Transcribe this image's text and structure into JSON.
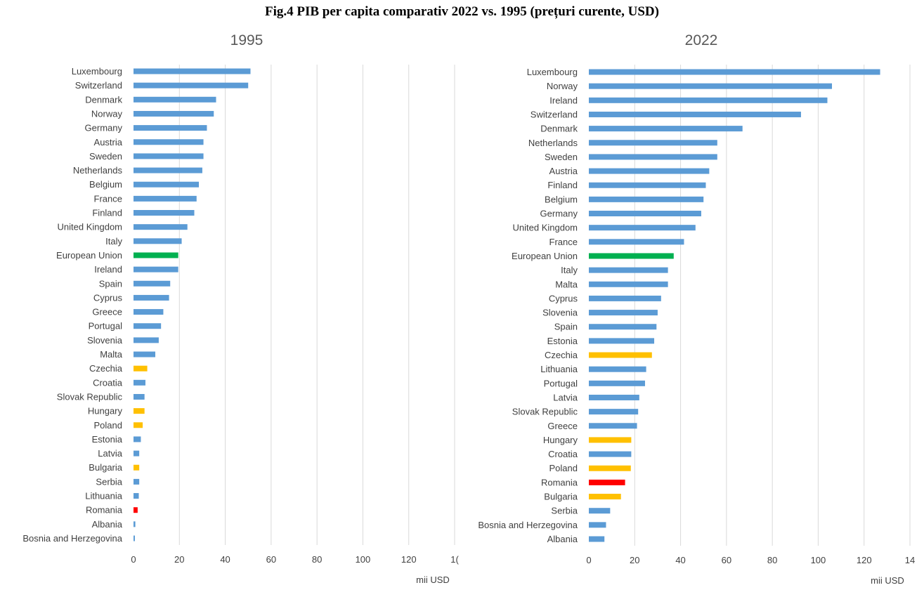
{
  "title": "Fig.4 PIB per capita comparativ 2022 vs. 1995 (prețuri curente, USD)",
  "colors": {
    "default": "#5b9bd5",
    "eu": "#00b050",
    "highlight": "#ffc000",
    "romania": "#ff0000"
  },
  "chart_data": [
    {
      "type": "bar",
      "title": "1995",
      "xlabel": "mii USD",
      "ylabel": "",
      "xlim": [
        0,
        140
      ],
      "ticks": [
        "0",
        "20",
        "40",
        "60",
        "80",
        "100",
        "120",
        "1("
      ],
      "grid": true,
      "legend": "none",
      "categories": [
        "Luxembourg",
        "Switzerland",
        "Denmark",
        "Norway",
        "Germany",
        "Austria",
        "Sweden",
        "Netherlands",
        "Belgium",
        "France",
        "Finland",
        "United Kingdom",
        "Italy",
        "European Union",
        "Ireland",
        "Spain",
        "Cyprus",
        "Greece",
        "Portugal",
        "Slovenia",
        "Malta",
        "Czechia",
        "Croatia",
        "Slovak Republic",
        "Hungary",
        "Poland",
        "Estonia",
        "Latvia",
        "Bulgaria",
        "Serbia",
        "Lithuania",
        "Romania",
        "Albania",
        "Bosnia and Herzegovina"
      ],
      "values": [
        51,
        50,
        36,
        35,
        32,
        30.5,
        30.5,
        30,
        28.5,
        27.5,
        26.5,
        23.5,
        21,
        19.5,
        19.5,
        16,
        15.5,
        13,
        12,
        11,
        9.5,
        6,
        5.2,
        4.8,
        4.8,
        4,
        3.2,
        2.5,
        2.5,
        2.5,
        2.3,
        1.8,
        0.8,
        0.6
      ],
      "bar_colors": [
        "default",
        "default",
        "default",
        "default",
        "default",
        "default",
        "default",
        "default",
        "default",
        "default",
        "default",
        "default",
        "default",
        "eu",
        "default",
        "default",
        "default",
        "default",
        "default",
        "default",
        "default",
        "highlight",
        "default",
        "default",
        "highlight",
        "highlight",
        "default",
        "default",
        "highlight",
        "default",
        "default",
        "romania",
        "default",
        "default"
      ]
    },
    {
      "type": "bar",
      "title": "2022",
      "xlabel": "mii USD",
      "ylabel": "",
      "xlim": [
        0,
        140
      ],
      "ticks": [
        "0",
        "20",
        "40",
        "60",
        "80",
        "100",
        "120",
        "14"
      ],
      "grid": true,
      "legend": "none",
      "categories": [
        "Luxembourg",
        "Norway",
        "Ireland",
        "Switzerland",
        "Denmark",
        "Netherlands",
        "Sweden",
        "Austria",
        "Finland",
        "Belgium",
        "Germany",
        "United Kingdom",
        "France",
        "European Union",
        "Italy",
        "Malta",
        "Cyprus",
        "Slovenia",
        "Spain",
        "Estonia",
        "Czechia",
        "Lithuania",
        "Portugal",
        "Latvia",
        "Slovak Republic",
        "Greece",
        "Hungary",
        "Croatia",
        "Poland",
        "Romania",
        "Bulgaria",
        "Serbia",
        "Bosnia and Herzegovina",
        "Albania"
      ],
      "values": [
        127,
        106,
        104,
        92.5,
        67,
        56,
        56,
        52.5,
        51,
        50,
        49,
        46.5,
        41.5,
        37,
        34.5,
        34.5,
        31.5,
        30,
        29.5,
        28.5,
        27.5,
        25,
        24.5,
        22,
        21.5,
        21,
        18.5,
        18.5,
        18.3,
        15.8,
        14,
        9.3,
        7.5,
        6.8
      ],
      "bar_colors": [
        "default",
        "default",
        "default",
        "default",
        "default",
        "default",
        "default",
        "default",
        "default",
        "default",
        "default",
        "default",
        "default",
        "eu",
        "default",
        "default",
        "default",
        "default",
        "default",
        "default",
        "highlight",
        "default",
        "default",
        "default",
        "default",
        "default",
        "highlight",
        "default",
        "highlight",
        "romania",
        "highlight",
        "default",
        "default",
        "default"
      ]
    }
  ]
}
